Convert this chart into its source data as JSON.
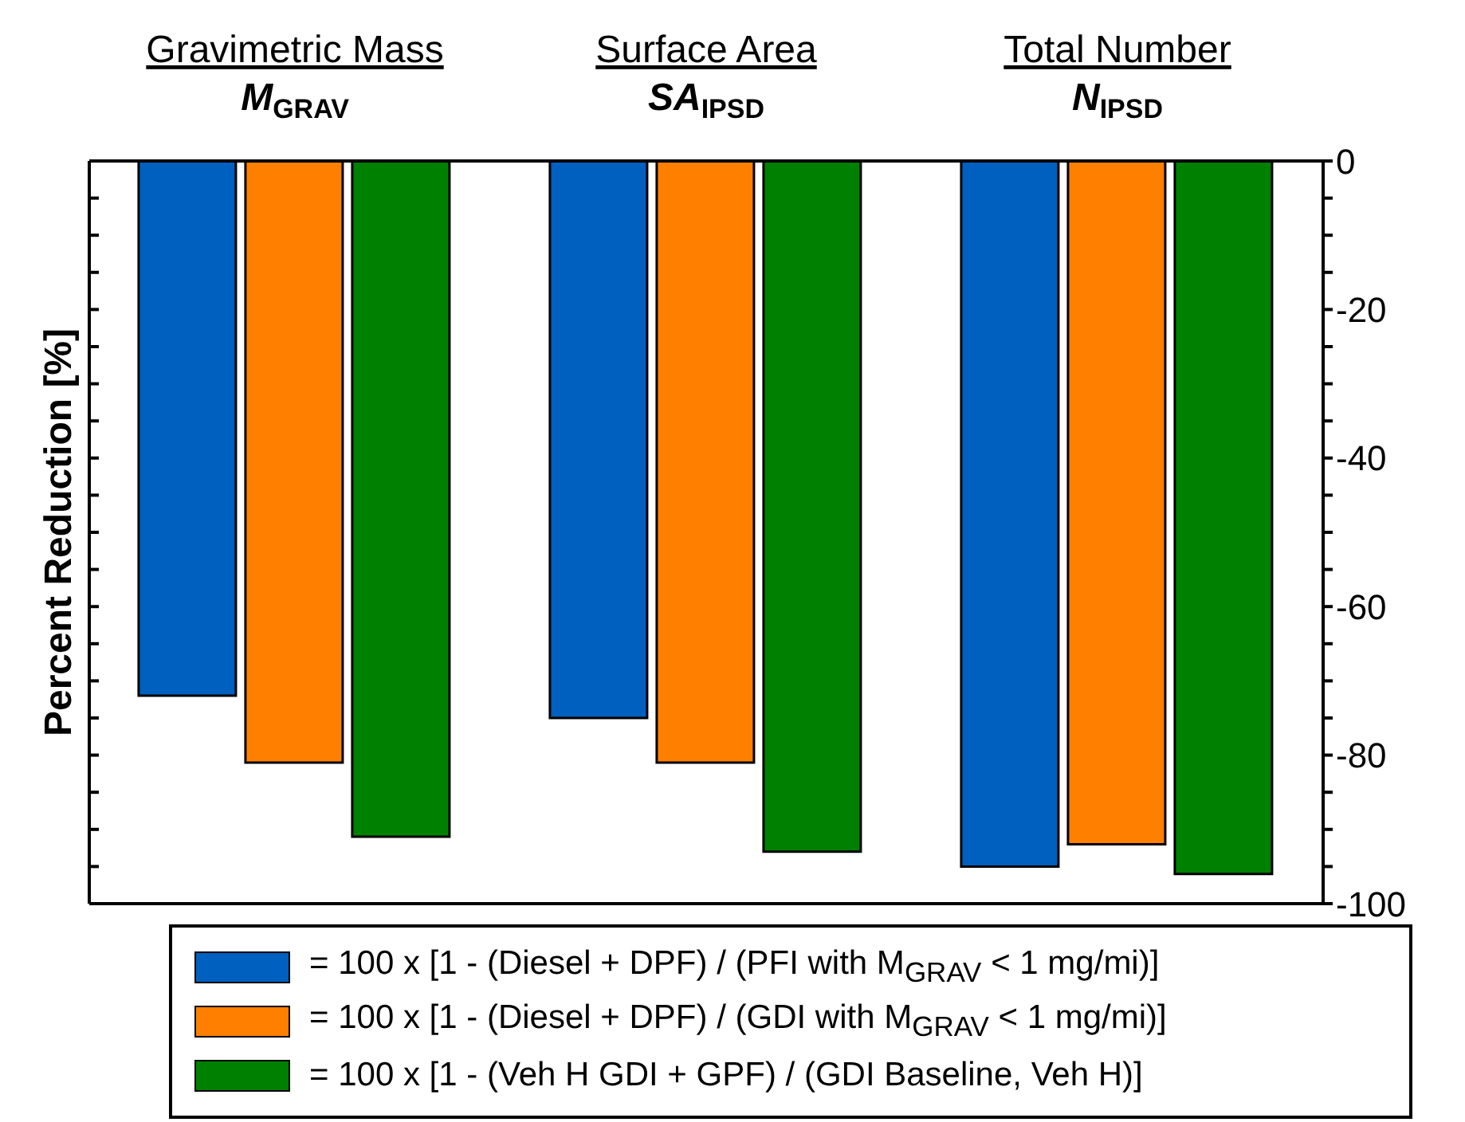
{
  "chart_data": {
    "type": "bar",
    "ylabel": "Percent Reduction [%]",
    "categories": [
      "Gravimetric Mass\nM$_{GRAV}$",
      "Surface Area\nSA$_{IPSD}$",
      "Total Number\nN$_{IPSD}$"
    ],
    "series": [
      {
        "name": "= 100 x [1 - (Diesel + DPF) / (PFI with M$_{GRAV}$ < 1 mg/mi)]",
        "color": "#0060c0",
        "values": [
          -72,
          -75,
          -95
        ]
      },
      {
        "name": "= 100 x [1 - (Diesel + DPF) / (GDI with M$_{GRAV}$ < 1 mg/mi)]",
        "color": "#ff8000",
        "values": [
          -81,
          -81,
          -92
        ]
      },
      {
        "name": "= 100 x [1 - (Veh H GDI + GPF) / (GDI Baseline, Veh H)]",
        "color": "#008000",
        "values": [
          -91,
          -93,
          -96
        ]
      }
    ],
    "ylim": [
      -100,
      0
    ],
    "yticks": [
      0,
      {
        "value": -5,
        "label": null
      },
      {
        "value": -10,
        "label": null
      },
      {
        "value": -15,
        "label": null
      },
      -20,
      {
        "value": -25,
        "label": null
      },
      {
        "value": -30,
        "label": null
      },
      {
        "value": -35,
        "label": null
      },
      -40,
      {
        "value": -45,
        "label": null
      },
      {
        "value": -50,
        "label": null
      },
      {
        "value": -55,
        "label": null
      },
      -60,
      {
        "value": -65,
        "label": null
      },
      {
        "value": -70,
        "label": null
      },
      {
        "value": -75,
        "label": null
      },
      -80,
      {
        "value": -85,
        "label": null
      },
      {
        "value": -90,
        "label": null
      },
      {
        "value": -95,
        "label": null
      },
      -100
    ],
    "grid": false,
    "legend": "bottom"
  }
}
